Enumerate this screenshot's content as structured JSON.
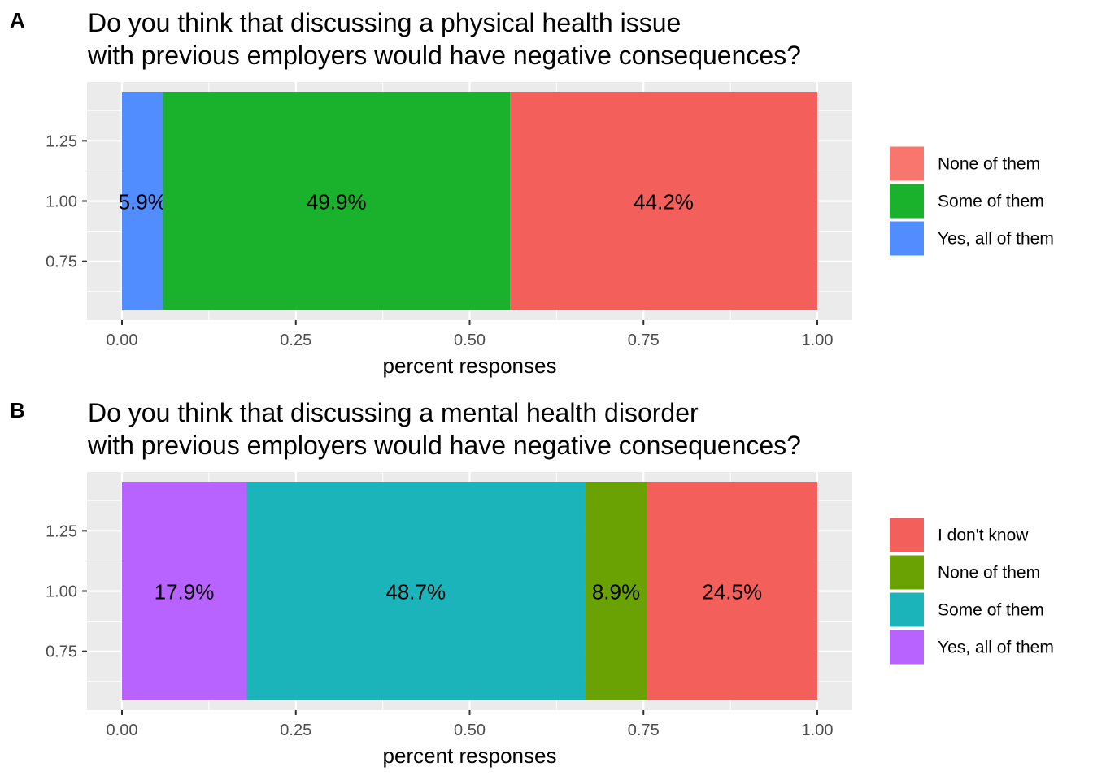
{
  "chart_data": [
    {
      "type": "bar",
      "orientation": "horizontal-stacked",
      "panel_tag": "A",
      "title_lines": [
        "Do you think that discussing a physical health issue",
        "with previous employers would have negative consequences?"
      ],
      "xlabel": "percent responses",
      "ylabel": "",
      "xlim": [
        0,
        1
      ],
      "ylim": [
        0.55,
        1.45
      ],
      "x_ticks": [
        "0.00",
        "0.25",
        "0.50",
        "0.75",
        "1.00"
      ],
      "y_ticks": [
        "1.25",
        "1.00",
        "0.75"
      ],
      "grid": true,
      "legend_position": "right",
      "legend": [
        {
          "label": "None of them",
          "color": "#F8766D"
        },
        {
          "label": "Some of them",
          "color": "#1AB12D"
        },
        {
          "label": "Yes, all of them",
          "color": "#528DFF"
        }
      ],
      "series": [
        {
          "name": "Yes, all of them",
          "value": 0.059,
          "label": "5.9%",
          "color": "#528DFF"
        },
        {
          "name": "Some of them",
          "value": 0.499,
          "label": "49.9%",
          "color": "#1AB12D"
        },
        {
          "name": "None of them",
          "value": 0.442,
          "label": "44.2%",
          "color": "#F3605B"
        }
      ]
    },
    {
      "type": "bar",
      "orientation": "horizontal-stacked",
      "panel_tag": "B",
      "title_lines": [
        "Do you think that discussing a mental health disorder",
        "with previous employers would have negative consequences?"
      ],
      "xlabel": "percent responses",
      "ylabel": "",
      "xlim": [
        0,
        1
      ],
      "ylim": [
        0.55,
        1.45
      ],
      "x_ticks": [
        "0.00",
        "0.25",
        "0.50",
        "0.75",
        "1.00"
      ],
      "y_ticks": [
        "1.25",
        "1.00",
        "0.75"
      ],
      "grid": true,
      "legend_position": "right",
      "legend": [
        {
          "label": "I don't know",
          "color": "#F3605B"
        },
        {
          "label": "None of them",
          "color": "#6BA203"
        },
        {
          "label": "Some of them",
          "color": "#1AB4BA"
        },
        {
          "label": "Yes, all of them",
          "color": "#B863FF"
        }
      ],
      "series": [
        {
          "name": "Yes, all of them",
          "value": 0.179,
          "label": "17.9%",
          "color": "#B863FF"
        },
        {
          "name": "Some of them",
          "value": 0.487,
          "label": "48.7%",
          "color": "#1AB4BA"
        },
        {
          "name": "None of them",
          "value": 0.089,
          "label": "8.9%",
          "color": "#6BA203"
        },
        {
          "name": "I don't know",
          "value": 0.245,
          "label": "24.5%",
          "color": "#F3605B"
        }
      ]
    }
  ]
}
